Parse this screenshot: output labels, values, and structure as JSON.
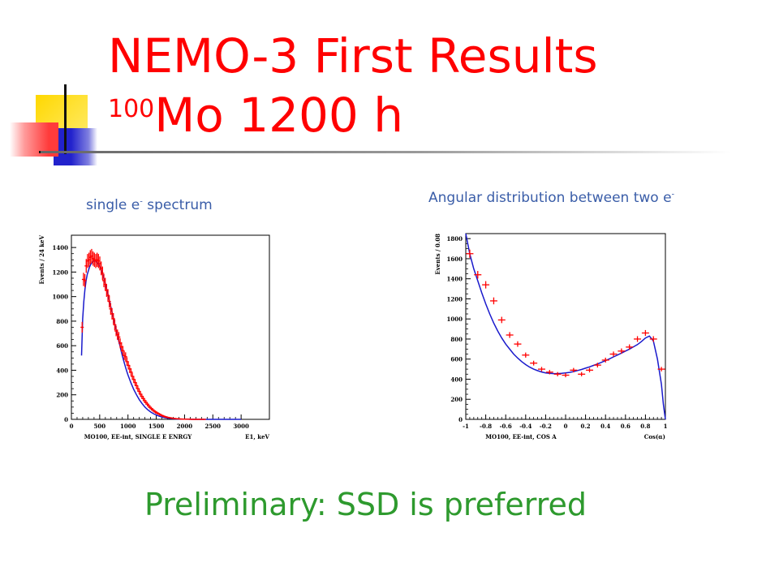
{
  "slide": {
    "title_line1": "NEMO-3 First Results",
    "title_sup": "100",
    "title_line2_rest": "Mo 1200 h",
    "bottom_text": "Preliminary: SSD is preferred",
    "colors": {
      "title": "#ff0000",
      "caption": "#3a5da8",
      "bottom": "#2e9a2e",
      "data": "#ff0000",
      "fit": "#1a1acc"
    }
  },
  "captions": {
    "left_main": "single e",
    "left_sup": "-",
    "left_tail": " spectrum",
    "right_main": "Angular distribution between two e",
    "right_sup": "-"
  },
  "chart_data": [
    {
      "type": "scatter",
      "ylabel": "Events / 24 keV",
      "xlabel": "MO100, EE-int, SINGLE E ENRGY",
      "xunit": "E1, keV",
      "xlim": [
        0,
        3500
      ],
      "ylim": [
        0,
        1500
      ],
      "xticks": [
        0,
        500,
        1000,
        1500,
        2000,
        2500,
        3000
      ],
      "yticks": [
        0,
        200,
        400,
        600,
        800,
        1000,
        1200,
        1400
      ],
      "data": {
        "x": [
          190,
          214,
          238,
          262,
          286,
          310,
          334,
          358,
          382,
          406,
          430,
          454,
          478,
          502,
          526,
          550,
          574,
          598,
          622,
          646,
          670,
          694,
          718,
          742,
          766,
          790,
          814,
          838,
          862,
          886,
          910,
          934,
          958,
          982,
          1006,
          1030,
          1054,
          1078,
          1102,
          1126,
          1150,
          1174,
          1198,
          1222,
          1246,
          1270,
          1294,
          1318,
          1342,
          1366,
          1390,
          1414,
          1438,
          1462,
          1486,
          1510,
          1534,
          1558,
          1582,
          1606,
          1630,
          1654,
          1678,
          1702,
          1726,
          1750,
          1774,
          1798,
          1822,
          1846,
          1870,
          1894,
          1918,
          1942,
          1966,
          1990,
          2014,
          2038,
          2062,
          2086,
          2110,
          2134,
          2158,
          2182,
          2206,
          2230,
          2254,
          2278,
          2302,
          2326,
          2350
        ],
        "y": [
          750,
          1140,
          1130,
          1250,
          1290,
          1300,
          1320,
          1330,
          1310,
          1300,
          1290,
          1300,
          1290,
          1270,
          1230,
          1190,
          1130,
          1100,
          1050,
          1010,
          960,
          900,
          860,
          820,
          770,
          720,
          690,
          670,
          620,
          590,
          560,
          520,
          510,
          470,
          440,
          410,
          385,
          350,
          325,
          300,
          275,
          250,
          228,
          205,
          187,
          170,
          152,
          138,
          124,
          110,
          98,
          87,
          77,
          68,
          60,
          53,
          47,
          41,
          35,
          30,
          26,
          22,
          19,
          16,
          14,
          12,
          10,
          8,
          7,
          6,
          5,
          4,
          3,
          3,
          2,
          2,
          1,
          1,
          1,
          1,
          0,
          0,
          0,
          0,
          0,
          0,
          0,
          0,
          0,
          0,
          0
        ]
      },
      "fit": {
        "x": [
          180,
          200,
          220,
          240,
          260,
          280,
          300,
          320,
          340,
          360,
          380,
          400,
          420,
          440,
          460,
          480,
          500,
          520,
          540,
          560,
          580,
          600,
          620,
          640,
          660,
          680,
          700,
          720,
          740,
          760,
          780,
          800,
          820,
          840,
          860,
          880,
          900,
          920,
          940,
          960,
          980,
          1000,
          1050,
          1100,
          1150,
          1200,
          1250,
          1300,
          1350,
          1400,
          1450,
          1500,
          1550,
          1600,
          1650,
          1700,
          1750,
          1800,
          1850,
          1900,
          1950,
          2000,
          2100,
          2200,
          2300,
          2400,
          2500,
          2600,
          2700,
          2800,
          2900,
          3000
        ],
        "y": [
          520,
          820,
          960,
          1060,
          1130,
          1180,
          1210,
          1240,
          1260,
          1275,
          1285,
          1290,
          1290,
          1285,
          1275,
          1262,
          1245,
          1225,
          1200,
          1170,
          1140,
          1105,
          1068,
          1030,
          990,
          950,
          910,
          870,
          830,
          790,
          750,
          710,
          670,
          632,
          594,
          557,
          520,
          486,
          452,
          420,
          390,
          362,
          300,
          245,
          200,
          160,
          128,
          100,
          78,
          60,
          46,
          35,
          26,
          19,
          14,
          10,
          7,
          5,
          3.5,
          2.5,
          1.8,
          1.2,
          0.6,
          0.3,
          0.1,
          0,
          0,
          0,
          0,
          0,
          0,
          0
        ]
      }
    },
    {
      "type": "scatter",
      "ylabel": "Events / 0.08",
      "xlabel": "MO100, EE-int, COS A",
      "xunit": "Cos(α)",
      "xlim": [
        -1,
        1
      ],
      "ylim": [
        0,
        1850
      ],
      "xticks": [
        -1,
        -0.8,
        -0.6,
        -0.4,
        -0.2,
        0,
        0.2,
        0.4,
        0.6,
        0.8,
        1
      ],
      "yticks": [
        0,
        200,
        400,
        600,
        800,
        1000,
        1200,
        1400,
        1600,
        1800
      ],
      "data": {
        "x": [
          -0.96,
          -0.88,
          -0.8,
          -0.72,
          -0.64,
          -0.56,
          -0.48,
          -0.4,
          -0.32,
          -0.24,
          -0.16,
          -0.08,
          0,
          0.08,
          0.16,
          0.24,
          0.32,
          0.4,
          0.48,
          0.56,
          0.64,
          0.72,
          0.8,
          0.88,
          0.96
        ],
        "y": [
          1650,
          1440,
          1340,
          1180,
          990,
          840,
          750,
          640,
          560,
          500,
          470,
          450,
          440,
          490,
          450,
          490,
          540,
          590,
          650,
          680,
          720,
          800,
          860,
          800,
          500
        ]
      },
      "fit": {
        "x": [
          -1,
          -0.96,
          -0.92,
          -0.88,
          -0.84,
          -0.8,
          -0.76,
          -0.72,
          -0.68,
          -0.64,
          -0.6,
          -0.56,
          -0.52,
          -0.48,
          -0.44,
          -0.4,
          -0.36,
          -0.32,
          -0.28,
          -0.24,
          -0.2,
          -0.16,
          -0.12,
          -0.08,
          -0.04,
          0,
          0.04,
          0.08,
          0.12,
          0.16,
          0.2,
          0.24,
          0.28,
          0.32,
          0.36,
          0.4,
          0.44,
          0.48,
          0.52,
          0.56,
          0.6,
          0.64,
          0.68,
          0.72,
          0.76,
          0.8,
          0.84,
          0.88,
          0.92,
          0.96,
          0.98,
          1
        ],
        "y": [
          1850,
          1650,
          1500,
          1380,
          1260,
          1150,
          1050,
          960,
          880,
          810,
          750,
          700,
          650,
          610,
          575,
          545,
          520,
          500,
          485,
          472,
          463,
          458,
          456,
          456,
          458,
          462,
          468,
          476,
          486,
          497,
          510,
          523,
          537,
          552,
          568,
          585,
          603,
          622,
          641,
          660,
          680,
          700,
          722,
          745,
          775,
          810,
          830,
          780,
          600,
          350,
          150,
          0
        ]
      }
    }
  ]
}
